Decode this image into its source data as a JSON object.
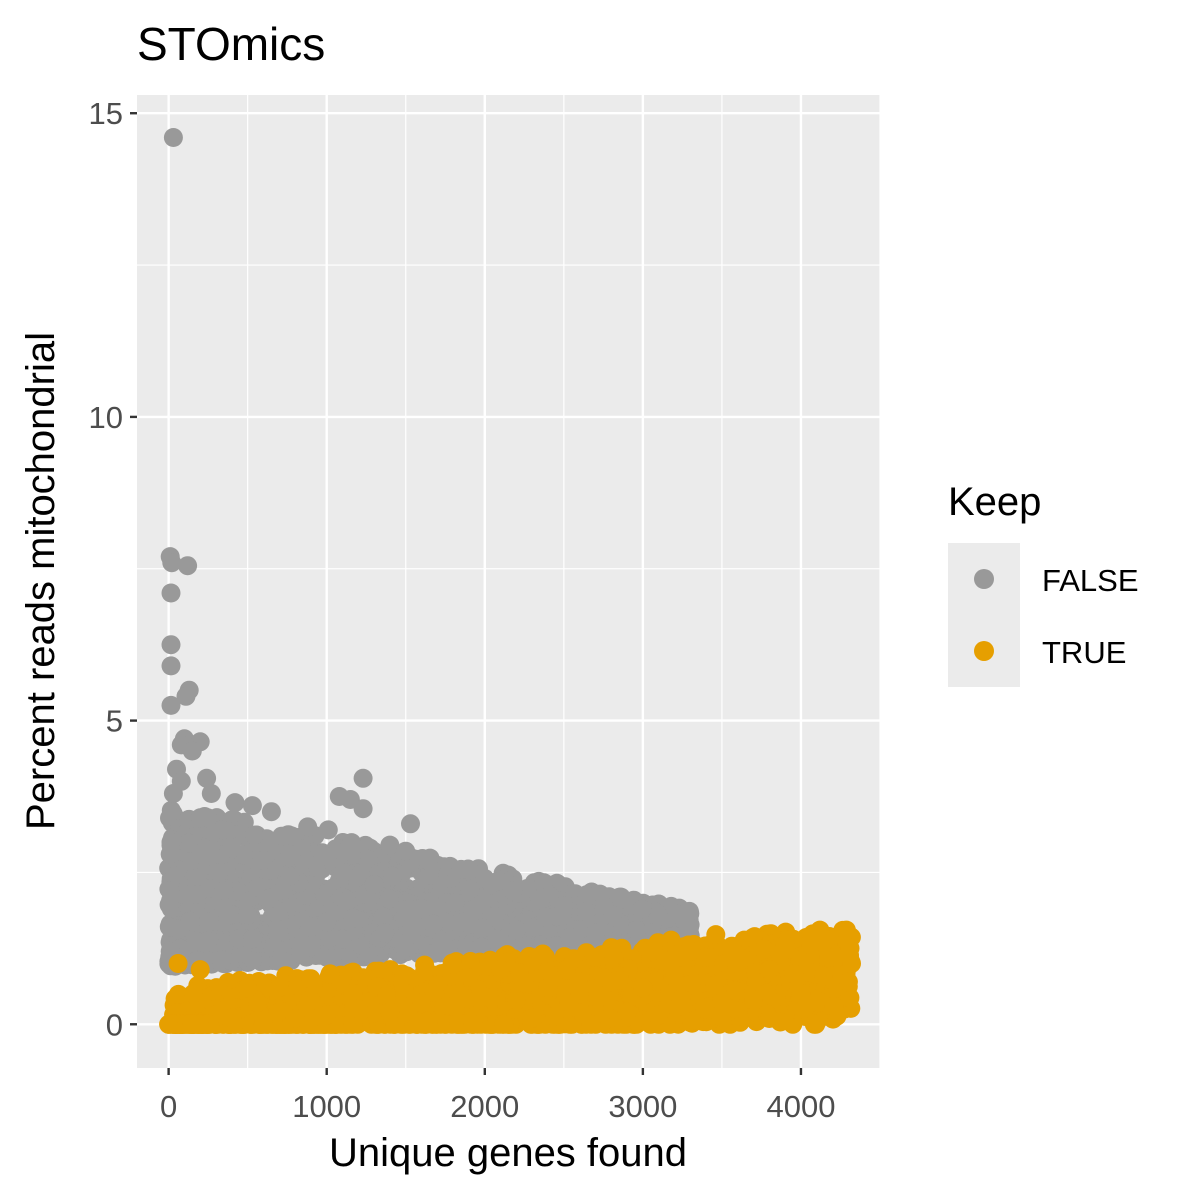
{
  "chart_data": {
    "type": "scatter",
    "title": "STOmics",
    "xlabel": "Unique genes found",
    "ylabel": "Percent reads mitochondrial",
    "xlim": [
      -200,
      4500
    ],
    "ylim": [
      -0.72,
      15.3
    ],
    "xticks": [
      0,
      1000,
      2000,
      3000,
      4000
    ],
    "xtick_labels": [
      "0",
      "1000",
      "2000",
      "3000",
      "4000"
    ],
    "yticks": [
      0,
      5,
      10,
      15
    ],
    "ytick_labels": [
      "0",
      "5",
      "10",
      "15"
    ],
    "grid": true,
    "legend_position": "right",
    "legend": {
      "title": "Keep",
      "entries": [
        {
          "label": "FALSE",
          "color": "#999999"
        },
        {
          "label": "TRUE",
          "color": "#E69F00"
        }
      ]
    },
    "colors": {
      "panel": "#EBEBEB",
      "grid": "#FFFFFF",
      "false": "#999999",
      "true": "#E69F00"
    },
    "series": [
      {
        "name": "FALSE",
        "color": "#999999",
        "points": [
          [
            30,
            14.6
          ],
          [
            10,
            7.7
          ],
          [
            20,
            7.6
          ],
          [
            120,
            7.55
          ],
          [
            15,
            7.1
          ],
          [
            15,
            6.25
          ],
          [
            15,
            5.9
          ],
          [
            130,
            5.5
          ],
          [
            110,
            5.4
          ],
          [
            15,
            5.25
          ],
          [
            100,
            4.7
          ],
          [
            200,
            4.65
          ],
          [
            80,
            4.6
          ],
          [
            150,
            4.5
          ],
          [
            50,
            4.2
          ],
          [
            1230,
            4.05
          ],
          [
            240,
            4.05
          ],
          [
            80,
            4.0
          ],
          [
            30,
            3.8
          ],
          [
            270,
            3.8
          ],
          [
            1080,
            3.75
          ],
          [
            1150,
            3.7
          ],
          [
            420,
            3.65
          ],
          [
            530,
            3.6
          ],
          [
            1230,
            3.55
          ],
          [
            650,
            3.5
          ],
          [
            20,
            3.5
          ],
          [
            1530,
            3.3
          ],
          [
            880,
            3.25
          ],
          [
            1010,
            3.2
          ],
          [
            200,
            3.4
          ],
          [
            340,
            3.2
          ],
          [
            780,
            3.1
          ],
          [
            1400,
            2.95
          ],
          [
            1500,
            2.85
          ],
          [
            1640,
            2.7
          ],
          [
            1780,
            2.6
          ],
          [
            1850,
            2.55
          ],
          [
            2000,
            2.4
          ],
          [
            2080,
            2.35
          ],
          [
            2180,
            2.2
          ],
          [
            2350,
            2.05
          ],
          [
            2500,
            1.95
          ],
          [
            2640,
            1.85
          ],
          [
            2810,
            1.8
          ],
          [
            3260,
            1.75
          ],
          [
            3050,
            1.5
          ],
          [
            3200,
            1.45
          ],
          [
            2960,
            1.55
          ],
          [
            10,
            1.2
          ],
          [
            20,
            1.0
          ],
          [
            10,
            2.2
          ],
          [
            10,
            2.8
          ],
          [
            15,
            3.0
          ],
          [
            350,
            2.2
          ],
          [
            500,
            1.8
          ],
          [
            900,
            1.6
          ],
          [
            1600,
            1.9
          ],
          [
            2200,
            1.55
          ],
          [
            2700,
            1.5
          ],
          [
            1100,
            1.4
          ],
          [
            600,
            2.7
          ],
          [
            1300,
            2.3
          ],
          [
            400,
            2.9
          ],
          [
            1900,
            1.7
          ]
        ]
      },
      {
        "name": "TRUE",
        "color": "#E69F00",
        "points": [
          [
            4120,
            1.55
          ],
          [
            4310,
            1.25
          ],
          [
            4320,
            1.0
          ],
          [
            4300,
            0.7
          ],
          [
            4210,
            1.1
          ],
          [
            3950,
            1.4
          ],
          [
            3800,
            0.9
          ],
          [
            3600,
            1.0
          ],
          [
            3400,
            1.1
          ],
          [
            3200,
            0.8
          ],
          [
            3000,
            0.6
          ],
          [
            2800,
            0.7
          ],
          [
            2600,
            0.5
          ],
          [
            2400,
            0.6
          ],
          [
            2200,
            0.4
          ],
          [
            2000,
            0.45
          ],
          [
            1800,
            0.3
          ],
          [
            1600,
            0.35
          ],
          [
            1400,
            0.2
          ],
          [
            1200,
            0.25
          ],
          [
            1000,
            0.15
          ],
          [
            800,
            0.1
          ],
          [
            600,
            0.05
          ],
          [
            400,
            0.1
          ],
          [
            200,
            0.9
          ],
          [
            60,
            1.0
          ],
          [
            30,
            0.0
          ],
          [
            0,
            0.0
          ],
          [
            150,
            0.0
          ],
          [
            3100,
            0.15
          ],
          [
            2300,
            0.1
          ],
          [
            4000,
            0.5
          ],
          [
            3700,
            0.4
          ],
          [
            2900,
            0.2
          ],
          [
            500,
            0.6
          ],
          [
            900,
            0.75
          ],
          [
            1500,
            0.8
          ],
          [
            2100,
            0.9
          ],
          [
            2700,
            1.1
          ],
          [
            3300,
            1.2
          ],
          [
            3900,
            1.3
          ]
        ]
      }
    ]
  }
}
